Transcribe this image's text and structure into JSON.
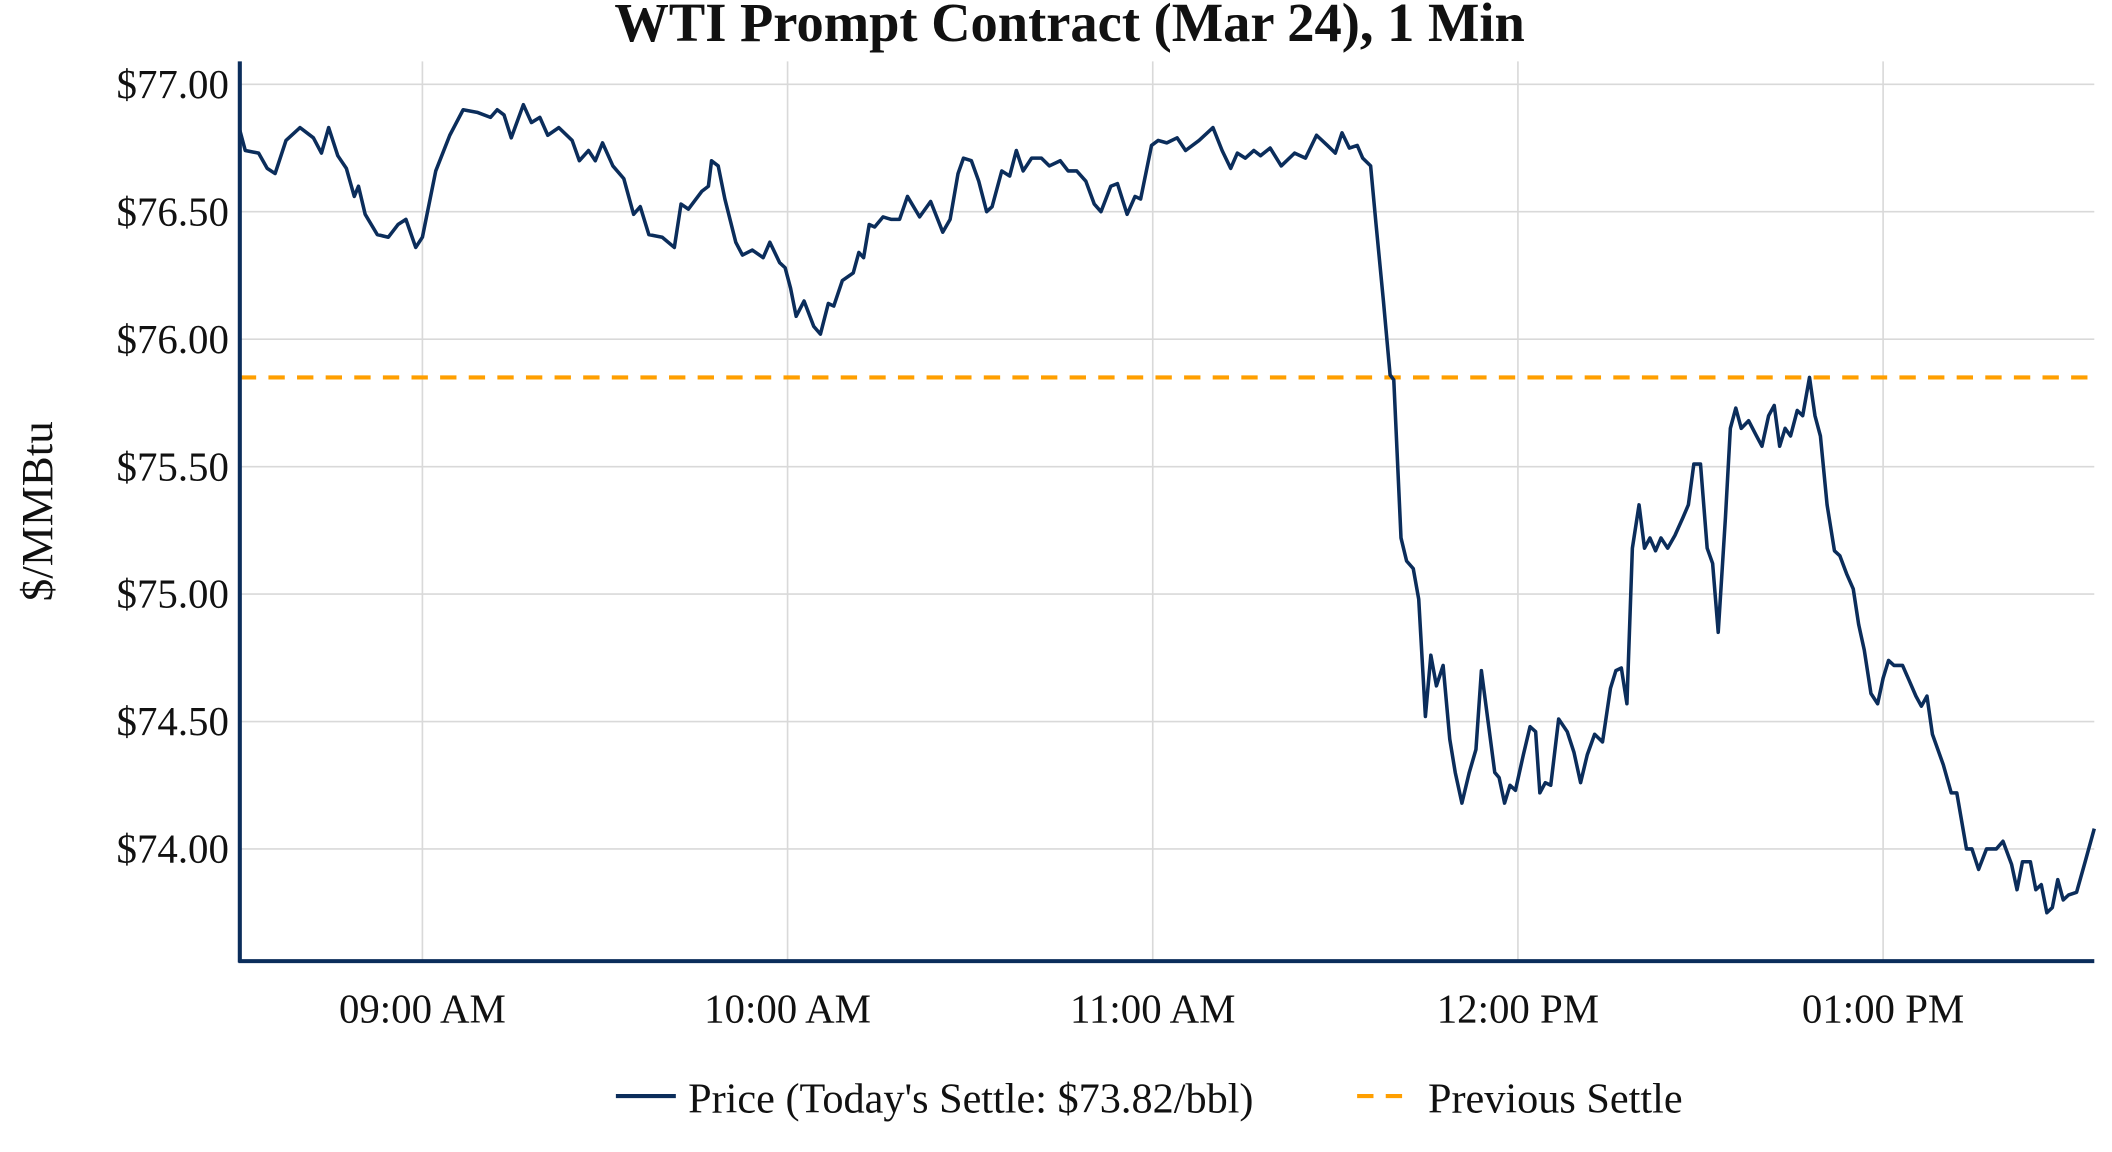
{
  "chart_data": {
    "type": "line",
    "title": "WTI Prompt Contract (Mar 24), 1 Min",
    "xlabel": "",
    "ylabel": "$/MMBtu",
    "x_units": "minutes since 08:30 AM",
    "xlim": [
      0,
      304.7
    ],
    "ylim": [
      73.56,
      77.09
    ],
    "grid": true,
    "legend_position": "bottom-center",
    "x_ticks": [
      {
        "value": 30,
        "label": "09:00 AM"
      },
      {
        "value": 90,
        "label": "10:00 AM"
      },
      {
        "value": 150,
        "label": "11:00 AM"
      },
      {
        "value": 210,
        "label": "12:00 PM"
      },
      {
        "value": 270,
        "label": "01:00 PM"
      }
    ],
    "y_ticks": [
      {
        "value": 77.0,
        "label": "$77.00"
      },
      {
        "value": 76.5,
        "label": "$76.50"
      },
      {
        "value": 76.0,
        "label": "$76.00"
      },
      {
        "value": 75.5,
        "label": "$75.50"
      },
      {
        "value": 75.0,
        "label": "$75.00"
      },
      {
        "value": 74.5,
        "label": "$74.50"
      },
      {
        "value": 74.0,
        "label": "$74.00"
      }
    ],
    "series": [
      {
        "name": "Price (Today's Settle: $73.82/bbl)",
        "color": "#0b2d5b",
        "style": "solid",
        "points": [
          [
            0,
            76.82
          ],
          [
            0.9,
            76.74
          ],
          [
            3.1,
            76.73
          ],
          [
            4.5,
            76.67
          ],
          [
            5.8,
            76.65
          ],
          [
            7.6,
            76.78
          ],
          [
            9.9,
            76.83
          ],
          [
            12.1,
            76.79
          ],
          [
            13.4,
            76.73
          ],
          [
            14.6,
            76.83
          ],
          [
            16.1,
            76.72
          ],
          [
            17.5,
            76.67
          ],
          [
            18.8,
            76.56
          ],
          [
            19.5,
            76.6
          ],
          [
            20.6,
            76.49
          ],
          [
            22.6,
            76.41
          ],
          [
            24.4,
            76.4
          ],
          [
            26.0,
            76.45
          ],
          [
            27.3,
            76.47
          ],
          [
            28.9,
            76.36
          ],
          [
            30.0,
            76.4
          ],
          [
            32.2,
            76.66
          ],
          [
            34.5,
            76.8
          ],
          [
            36.7,
            76.9
          ],
          [
            39.0,
            76.89
          ],
          [
            41.2,
            76.87
          ],
          [
            42.3,
            76.9
          ],
          [
            43.4,
            76.88
          ],
          [
            44.6,
            76.79
          ],
          [
            46.6,
            76.92
          ],
          [
            47.9,
            76.85
          ],
          [
            49.3,
            76.87
          ],
          [
            50.6,
            76.8
          ],
          [
            52.4,
            76.83
          ],
          [
            54.6,
            76.78
          ],
          [
            55.8,
            76.7
          ],
          [
            57.3,
            76.74
          ],
          [
            58.4,
            76.7
          ],
          [
            59.6,
            76.77
          ],
          [
            61.3,
            76.68
          ],
          [
            63.1,
            76.63
          ],
          [
            64.7,
            76.49
          ],
          [
            65.8,
            76.52
          ],
          [
            67.2,
            76.41
          ],
          [
            69.4,
            76.4
          ],
          [
            71.4,
            76.36
          ],
          [
            72.5,
            76.53
          ],
          [
            73.7,
            76.51
          ],
          [
            75.9,
            76.58
          ],
          [
            77.0,
            76.6
          ],
          [
            77.5,
            76.7
          ],
          [
            78.6,
            76.68
          ],
          [
            79.7,
            76.55
          ],
          [
            81.5,
            76.38
          ],
          [
            82.6,
            76.33
          ],
          [
            84.2,
            76.35
          ],
          [
            86.0,
            76.32
          ],
          [
            87.1,
            76.38
          ],
          [
            88.7,
            76.3
          ],
          [
            89.6,
            76.28
          ],
          [
            90.5,
            76.2
          ],
          [
            91.4,
            76.09
          ],
          [
            92.7,
            76.15
          ],
          [
            94.3,
            76.05
          ],
          [
            95.4,
            76.02
          ],
          [
            96.7,
            76.14
          ],
          [
            97.6,
            76.13
          ],
          [
            99.0,
            76.23
          ],
          [
            100.8,
            76.26
          ],
          [
            101.7,
            76.34
          ],
          [
            102.5,
            76.32
          ],
          [
            103.4,
            76.45
          ],
          [
            104.3,
            76.44
          ],
          [
            105.7,
            76.48
          ],
          [
            107.0,
            76.47
          ],
          [
            108.4,
            76.47
          ],
          [
            109.7,
            76.56
          ],
          [
            111.7,
            76.48
          ],
          [
            113.5,
            76.54
          ],
          [
            115.5,
            76.42
          ],
          [
            116.7,
            76.47
          ],
          [
            118.0,
            76.65
          ],
          [
            118.9,
            76.71
          ],
          [
            120.2,
            76.7
          ],
          [
            121.4,
            76.62
          ],
          [
            122.7,
            76.5
          ],
          [
            123.6,
            76.52
          ],
          [
            125.2,
            76.66
          ],
          [
            126.5,
            76.64
          ],
          [
            127.6,
            76.74
          ],
          [
            128.7,
            76.66
          ],
          [
            130.1,
            76.71
          ],
          [
            131.7,
            76.71
          ],
          [
            133.0,
            76.68
          ],
          [
            134.8,
            76.7
          ],
          [
            136.1,
            76.66
          ],
          [
            137.5,
            76.66
          ],
          [
            139.0,
            76.62
          ],
          [
            140.4,
            76.53
          ],
          [
            141.5,
            76.5
          ],
          [
            143.1,
            76.6
          ],
          [
            144.2,
            76.61
          ],
          [
            145.8,
            76.49
          ],
          [
            147.1,
            76.56
          ],
          [
            148.0,
            76.55
          ],
          [
            149.8,
            76.76
          ],
          [
            150.9,
            76.78
          ],
          [
            152.3,
            76.77
          ],
          [
            154.0,
            76.79
          ],
          [
            155.4,
            76.74
          ],
          [
            157.6,
            76.78
          ],
          [
            159.9,
            76.83
          ],
          [
            161.4,
            76.74
          ],
          [
            162.8,
            76.67
          ],
          [
            163.9,
            76.73
          ],
          [
            165.2,
            76.71
          ],
          [
            166.6,
            76.74
          ],
          [
            167.7,
            76.72
          ],
          [
            169.3,
            76.75
          ],
          [
            171.1,
            76.68
          ],
          [
            173.3,
            76.73
          ],
          [
            175.1,
            76.71
          ],
          [
            176.9,
            76.8
          ],
          [
            178.7,
            76.76
          ],
          [
            180.0,
            76.73
          ],
          [
            181.1,
            76.81
          ],
          [
            182.3,
            76.75
          ],
          [
            183.6,
            76.76
          ],
          [
            184.5,
            76.71
          ],
          [
            185.8,
            76.68
          ],
          [
            186.7,
            76.45
          ],
          [
            187.9,
            76.15
          ],
          [
            189.0,
            75.86
          ],
          [
            189.6,
            75.84
          ],
          [
            190.8,
            75.22
          ],
          [
            191.7,
            75.13
          ],
          [
            192.8,
            75.1
          ],
          [
            193.7,
            74.98
          ],
          [
            194.8,
            74.52
          ],
          [
            195.7,
            74.76
          ],
          [
            196.6,
            74.64
          ],
          [
            197.7,
            74.72
          ],
          [
            198.8,
            74.43
          ],
          [
            199.7,
            74.3
          ],
          [
            200.8,
            74.18
          ],
          [
            202.0,
            74.3
          ],
          [
            203.1,
            74.39
          ],
          [
            204.0,
            74.7
          ],
          [
            205.1,
            74.5
          ],
          [
            206.2,
            74.3
          ],
          [
            206.9,
            74.28
          ],
          [
            207.8,
            74.18
          ],
          [
            208.7,
            74.25
          ],
          [
            209.6,
            74.23
          ],
          [
            210.9,
            74.37
          ],
          [
            212.0,
            74.48
          ],
          [
            212.9,
            74.46
          ],
          [
            213.6,
            74.22
          ],
          [
            214.5,
            74.26
          ],
          [
            215.4,
            74.25
          ],
          [
            216.7,
            74.51
          ],
          [
            218.1,
            74.46
          ],
          [
            219.2,
            74.38
          ],
          [
            220.3,
            74.26
          ],
          [
            221.4,
            74.37
          ],
          [
            222.6,
            74.45
          ],
          [
            223.9,
            74.42
          ],
          [
            225.2,
            74.63
          ],
          [
            226.1,
            74.7
          ],
          [
            227.0,
            74.71
          ],
          [
            227.9,
            74.57
          ],
          [
            228.8,
            75.18
          ],
          [
            229.9,
            75.35
          ],
          [
            230.8,
            75.18
          ],
          [
            231.7,
            75.22
          ],
          [
            232.6,
            75.17
          ],
          [
            233.5,
            75.22
          ],
          [
            234.6,
            75.18
          ],
          [
            235.8,
            75.23
          ],
          [
            237.1,
            75.3
          ],
          [
            238.0,
            75.35
          ],
          [
            238.9,
            75.51
          ],
          [
            240.0,
            75.51
          ],
          [
            241.1,
            75.18
          ],
          [
            242.0,
            75.12
          ],
          [
            242.9,
            74.85
          ],
          [
            244.1,
            75.3
          ],
          [
            244.9,
            75.65
          ],
          [
            245.8,
            75.73
          ],
          [
            246.7,
            75.65
          ],
          [
            247.9,
            75.68
          ],
          [
            249.2,
            75.62
          ],
          [
            250.1,
            75.58
          ],
          [
            251.2,
            75.7
          ],
          [
            252.1,
            75.74
          ],
          [
            253.0,
            75.58
          ],
          [
            253.9,
            75.65
          ],
          [
            254.8,
            75.62
          ],
          [
            255.9,
            75.72
          ],
          [
            256.8,
            75.7
          ],
          [
            257.9,
            75.85
          ],
          [
            258.8,
            75.7
          ],
          [
            259.7,
            75.62
          ],
          [
            260.8,
            75.35
          ],
          [
            262.0,
            75.17
          ],
          [
            262.9,
            75.15
          ],
          [
            264.0,
            75.08
          ],
          [
            265.1,
            75.02
          ],
          [
            266.0,
            74.88
          ],
          [
            266.9,
            74.78
          ],
          [
            268.0,
            74.61
          ],
          [
            269.1,
            74.57
          ],
          [
            270.0,
            74.67
          ],
          [
            270.9,
            74.74
          ],
          [
            271.8,
            74.72
          ],
          [
            273.2,
            74.72
          ],
          [
            274.3,
            74.66
          ],
          [
            275.4,
            74.6
          ],
          [
            276.3,
            74.56
          ],
          [
            277.2,
            74.6
          ],
          [
            278.1,
            74.45
          ],
          [
            279.9,
            74.33
          ],
          [
            281.2,
            74.22
          ],
          [
            282.1,
            74.22
          ],
          [
            283.7,
            74.0
          ],
          [
            284.6,
            74.0
          ],
          [
            285.7,
            73.92
          ],
          [
            287.0,
            74.0
          ],
          [
            288.6,
            74.0
          ],
          [
            289.7,
            74.03
          ],
          [
            291.1,
            73.94
          ],
          [
            292.0,
            73.84
          ],
          [
            292.9,
            73.95
          ],
          [
            294.2,
            73.95
          ],
          [
            295.1,
            73.84
          ],
          [
            296.0,
            73.86
          ],
          [
            296.9,
            73.75
          ],
          [
            297.8,
            73.77
          ],
          [
            298.7,
            73.88
          ],
          [
            299.6,
            73.8
          ],
          [
            300.5,
            73.82
          ],
          [
            301.8,
            73.83
          ],
          [
            303.2,
            73.95
          ],
          [
            304.7,
            74.08
          ]
        ]
      },
      {
        "name": "Previous Settle",
        "color": "#ff9f00",
        "style": "dashed",
        "value": 75.85
      }
    ]
  }
}
